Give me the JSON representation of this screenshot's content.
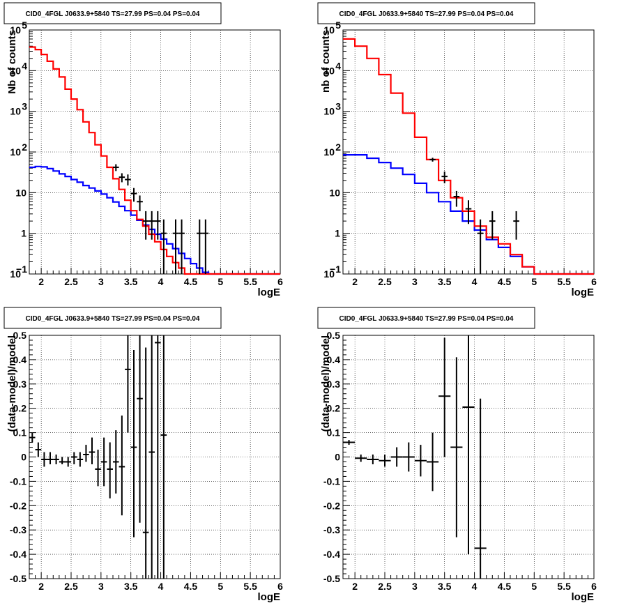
{
  "colors": {
    "total": "#ff0000",
    "background": "#0000ff",
    "data": "#000000"
  },
  "chart_data": [
    {
      "type": "line",
      "title": "CID0_4FGL J0633.9+5840 TS=27.99 PS=0.04 PS=0.04",
      "xlabel": "logE",
      "ylabel": "Nb of counts",
      "xlim": [
        1.8,
        6.0
      ],
      "ylim": [
        0.1,
        100000
      ],
      "yscale": "log",
      "grid": true,
      "x_ticks": [
        "2",
        "2.5",
        "3",
        "3.5",
        "4",
        "4.5",
        "5",
        "5.5",
        "6"
      ],
      "y_ticks": [
        "10^-1",
        "1",
        "10",
        "10^2",
        "10^3",
        "10^4",
        "10^5"
      ],
      "bin_edges": [
        1.8,
        1.9,
        2.0,
        2.1,
        2.2,
        2.3,
        2.4,
        2.5,
        2.6,
        2.7,
        2.8,
        2.9,
        3.0,
        3.1,
        3.2,
        3.3,
        3.4,
        3.5,
        3.6,
        3.7,
        3.8,
        3.9,
        4.0,
        4.1,
        4.2,
        4.3,
        4.4,
        4.5,
        4.6,
        4.7,
        4.8,
        4.9,
        5.0,
        5.1,
        5.2,
        5.3,
        5.4,
        5.5,
        5.6,
        5.7,
        5.8,
        5.9,
        6.0
      ],
      "series": [
        {
          "role": "total",
          "values": [
            38000,
            33000,
            25000,
            17000,
            11000,
            7000,
            3500,
            2000,
            1100,
            550,
            300,
            150,
            80,
            42,
            22,
            12,
            6.5,
            3.6,
            2.2,
            1.5,
            0.95,
            0.62,
            0.4,
            0.27,
            0.19,
            0.14,
            0.1,
            0.1,
            0.1,
            0.1,
            0.1,
            0.1,
            0.1,
            0.1,
            0.1,
            0.1,
            0.1,
            0.1,
            0.1,
            0.1,
            0.1,
            0.1
          ]
        },
        {
          "role": "background",
          "values": [
            42,
            44,
            43,
            39,
            34,
            29,
            25,
            21,
            18,
            15,
            13,
            11,
            9.2,
            7.5,
            5.9,
            4.6,
            3.6,
            2.8,
            2.1,
            1.6,
            1.25,
            0.95,
            0.72,
            0.55,
            0.42,
            0.32,
            0.24,
            0.18,
            0.14,
            0.11,
            0.1,
            0.1,
            0.1,
            0.1,
            0.1,
            0.1,
            0.1,
            0.1,
            0.1,
            0.1,
            0.1,
            0.1
          ]
        }
      ],
      "points": [
        {
          "x": 3.25,
          "y": 42,
          "lo": 34,
          "hi": 50
        },
        {
          "x": 3.35,
          "y": 24,
          "lo": 18,
          "hi": 30
        },
        {
          "x": 3.45,
          "y": 21,
          "lo": 15,
          "hi": 28
        },
        {
          "x": 3.55,
          "y": 9.5,
          "lo": 6,
          "hi": 13
        },
        {
          "x": 3.65,
          "y": 6.0,
          "lo": 3.5,
          "hi": 8.5
        },
        {
          "x": 3.75,
          "y": 2.0,
          "lo": 0.7,
          "hi": 3.5
        },
        {
          "x": 3.85,
          "y": 2.0,
          "lo": 0.7,
          "hi": 3.5
        },
        {
          "x": 3.95,
          "y": 2.0,
          "lo": 0.7,
          "hi": 3.5
        },
        {
          "x": 4.05,
          "y": 1.0,
          "lo": 0.1,
          "hi": 2.2
        },
        {
          "x": 4.25,
          "y": 1.0,
          "lo": 0.1,
          "hi": 2.2
        },
        {
          "x": 4.35,
          "y": 1.0,
          "lo": 0.1,
          "hi": 2.2
        },
        {
          "x": 4.65,
          "y": 1.0,
          "lo": 0.1,
          "hi": 2.2
        },
        {
          "x": 4.75,
          "y": 1.0,
          "lo": 0.1,
          "hi": 2.2
        }
      ]
    },
    {
      "type": "line",
      "title": "CID0_4FGL J0633.9+5840 TS=27.99 PS=0.04 PS=0.04",
      "xlabel": "logE",
      "ylabel": "nb of counts",
      "xlim": [
        1.8,
        6.0
      ],
      "ylim": [
        0.1,
        100000
      ],
      "yscale": "log",
      "grid": true,
      "x_ticks": [
        "2",
        "2.5",
        "3",
        "3.5",
        "4",
        "4.5",
        "5",
        "5.5",
        "6"
      ],
      "y_ticks": [
        "10^-1",
        "1",
        "10",
        "10^2",
        "10^3",
        "10^4",
        "10^5"
      ],
      "bin_edges": [
        1.8,
        2.0,
        2.2,
        2.4,
        2.6,
        2.8,
        3.0,
        3.2,
        3.4,
        3.6,
        3.8,
        4.0,
        4.2,
        4.4,
        4.6,
        4.8,
        5.0,
        5.2,
        5.4,
        5.6,
        5.8,
        6.0
      ],
      "series": [
        {
          "role": "total",
          "values": [
            60000,
            40000,
            20000,
            8000,
            2800,
            900,
            230,
            65,
            20,
            7.5,
            3.5,
            1.5,
            0.8,
            0.55,
            0.3,
            0.15,
            0.1,
            0.1,
            0.1,
            0.1,
            0.1
          ]
        },
        {
          "role": "background",
          "values": [
            85,
            85,
            70,
            55,
            40,
            28,
            17,
            10,
            6,
            3.5,
            2.0,
            1.2,
            0.7,
            0.45,
            0.27,
            0.15,
            0.1,
            0.1,
            0.1,
            0.1,
            0.1
          ]
        }
      ],
      "points": [
        {
          "x": 3.3,
          "y": 65,
          "lo": 58,
          "hi": 72
        },
        {
          "x": 3.5,
          "y": 25,
          "lo": 17,
          "hi": 33
        },
        {
          "x": 3.7,
          "y": 8,
          "lo": 4.5,
          "hi": 11
        },
        {
          "x": 3.9,
          "y": 4,
          "lo": 1.7,
          "hi": 6.5
        },
        {
          "x": 4.1,
          "y": 1.0,
          "lo": 0.1,
          "hi": 2.2
        },
        {
          "x": 4.3,
          "y": 2.0,
          "lo": 0.7,
          "hi": 3.5
        },
        {
          "x": 4.7,
          "y": 2.0,
          "lo": 0.7,
          "hi": 3.5
        }
      ]
    },
    {
      "type": "scatter",
      "title": "CID0_4FGL J0633.9+5840 TS=27.99 PS=0.04 PS=0.04",
      "xlabel": "logE",
      "ylabel": "(data-model)/model",
      "xlim": [
        1.8,
        6.0
      ],
      "ylim": [
        -0.5,
        0.5
      ],
      "grid": true,
      "x_ticks": [
        "2",
        "2.5",
        "3",
        "3.5",
        "4",
        "4.5",
        "5",
        "5.5",
        "6"
      ],
      "y_ticks": [
        "-0.5",
        "-0.4",
        "-0.3",
        "-0.2",
        "-0.1",
        "0",
        "0.1",
        "0.2",
        "0.3",
        "0.4",
        "0.5"
      ],
      "points": [
        {
          "x": 1.85,
          "y": 0.08,
          "lo": 0.06,
          "hi": 0.1,
          "hw": 0.05
        },
        {
          "x": 1.95,
          "y": 0.03,
          "lo": 0.0,
          "hi": 0.06,
          "hw": 0.05
        },
        {
          "x": 2.05,
          "y": -0.01,
          "lo": -0.04,
          "hi": 0.02,
          "hw": 0.05
        },
        {
          "x": 2.15,
          "y": -0.01,
          "lo": -0.03,
          "hi": 0.02,
          "hw": 0.05
        },
        {
          "x": 2.25,
          "y": -0.01,
          "lo": -0.03,
          "hi": 0.01,
          "hw": 0.05
        },
        {
          "x": 2.35,
          "y": -0.02,
          "lo": -0.03,
          "hi": 0.0,
          "hw": 0.05
        },
        {
          "x": 2.45,
          "y": -0.02,
          "lo": -0.04,
          "hi": 0.0,
          "hw": 0.05
        },
        {
          "x": 2.55,
          "y": 0.0,
          "lo": -0.03,
          "hi": 0.02,
          "hw": 0.05
        },
        {
          "x": 2.65,
          "y": -0.01,
          "lo": -0.04,
          "hi": 0.02,
          "hw": 0.05
        },
        {
          "x": 2.75,
          "y": 0.01,
          "lo": -0.02,
          "hi": 0.05,
          "hw": 0.05
        },
        {
          "x": 2.85,
          "y": 0.02,
          "lo": -0.03,
          "hi": 0.08,
          "hw": 0.05
        },
        {
          "x": 2.95,
          "y": -0.05,
          "lo": -0.12,
          "hi": 0.03,
          "hw": 0.05
        },
        {
          "x": 3.05,
          "y": -0.02,
          "lo": -0.12,
          "hi": 0.08,
          "hw": 0.05
        },
        {
          "x": 3.15,
          "y": -0.05,
          "lo": -0.17,
          "hi": 0.06,
          "hw": 0.05
        },
        {
          "x": 3.25,
          "y": -0.02,
          "lo": -0.15,
          "hi": 0.11,
          "hw": 0.05
        },
        {
          "x": 3.35,
          "y": -0.04,
          "lo": -0.24,
          "hi": 0.17,
          "hw": 0.05
        },
        {
          "x": 3.45,
          "y": 0.36,
          "lo": 0.1,
          "hi": 0.5,
          "hw": 0.05
        },
        {
          "x": 3.55,
          "y": 0.04,
          "lo": -0.33,
          "hi": 0.44,
          "hw": 0.05
        },
        {
          "x": 3.65,
          "y": 0.24,
          "lo": -0.27,
          "hi": 0.5,
          "hw": 0.05
        },
        {
          "x": 3.75,
          "y": -0.31,
          "lo": -0.5,
          "hi": 0.45,
          "hw": 0.05
        },
        {
          "x": 3.85,
          "y": 0.02,
          "lo": -0.5,
          "hi": 0.5,
          "hw": 0.05
        },
        {
          "x": 3.95,
          "y": 0.47,
          "lo": -0.5,
          "hi": 0.5,
          "hw": 0.05
        },
        {
          "x": 4.05,
          "y": 0.09,
          "lo": -0.5,
          "hi": 0.5,
          "hw": 0.05
        }
      ]
    },
    {
      "type": "scatter",
      "title": "CID0_4FGL J0633.9+5840 TS=27.99 PS=0.04 PS=0.04",
      "xlabel": "logE",
      "ylabel": "(data-model)/model",
      "xlim": [
        1.8,
        6.0
      ],
      "ylim": [
        -0.5,
        0.5
      ],
      "grid": true,
      "x_ticks": [
        "2",
        "2.5",
        "3",
        "3.5",
        "4",
        "4.5",
        "5",
        "5.5",
        "6"
      ],
      "y_ticks": [
        "-0.5",
        "-0.4",
        "-0.3",
        "-0.2",
        "-0.1",
        "0",
        "0.1",
        "0.2",
        "0.3",
        "0.4",
        "0.5"
      ],
      "points": [
        {
          "x": 1.9,
          "y": 0.06,
          "lo": 0.05,
          "hi": 0.07,
          "hw": 0.1
        },
        {
          "x": 2.1,
          "y": -0.005,
          "lo": -0.02,
          "hi": 0.01,
          "hw": 0.1
        },
        {
          "x": 2.3,
          "y": -0.01,
          "lo": -0.03,
          "hi": 0.01,
          "hw": 0.1
        },
        {
          "x": 2.5,
          "y": -0.015,
          "lo": -0.04,
          "hi": 0.01,
          "hw": 0.1
        },
        {
          "x": 2.7,
          "y": 0.0,
          "lo": -0.04,
          "hi": 0.04,
          "hw": 0.1
        },
        {
          "x": 2.9,
          "y": 0.0,
          "lo": -0.06,
          "hi": 0.06,
          "hw": 0.1
        },
        {
          "x": 3.1,
          "y": -0.015,
          "lo": -0.08,
          "hi": 0.05,
          "hw": 0.1
        },
        {
          "x": 3.3,
          "y": -0.02,
          "lo": -0.14,
          "hi": 0.1,
          "hw": 0.1
        },
        {
          "x": 3.5,
          "y": 0.25,
          "lo": 0.0,
          "hi": 0.49,
          "hw": 0.1
        },
        {
          "x": 3.7,
          "y": 0.04,
          "lo": -0.33,
          "hi": 0.41,
          "hw": 0.1
        },
        {
          "x": 3.9,
          "y": 0.205,
          "lo": -0.4,
          "hi": 0.5,
          "hw": 0.1
        },
        {
          "x": 4.1,
          "y": -0.375,
          "lo": -0.5,
          "hi": 0.24,
          "hw": 0.1
        }
      ]
    }
  ]
}
